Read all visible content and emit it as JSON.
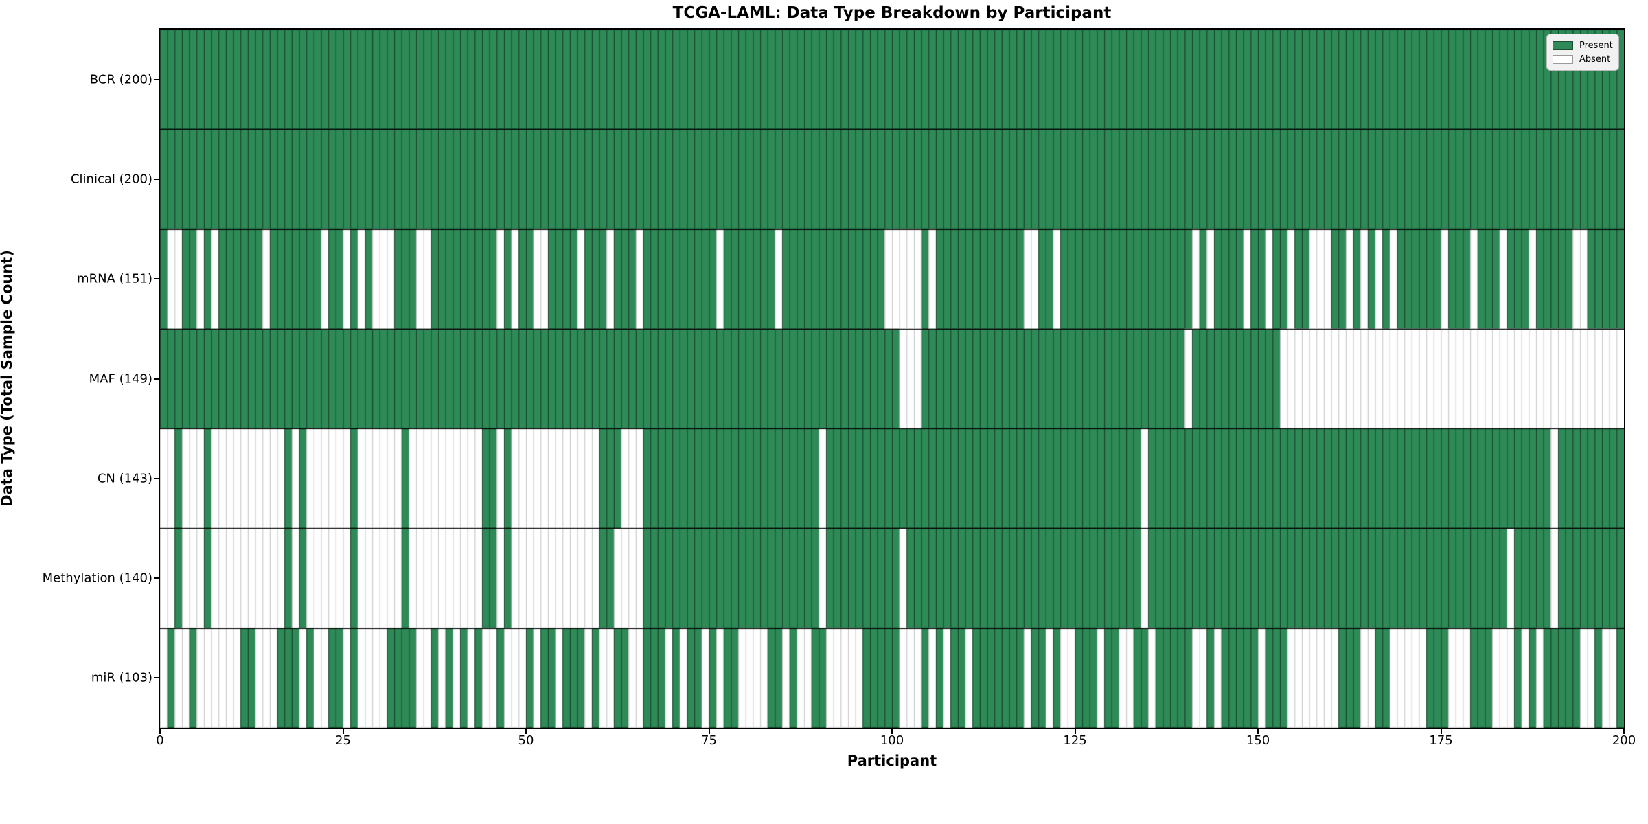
{
  "chart_data": {
    "type": "heatmap",
    "title": "TCGA-LAML: Data Type Breakdown by Participant",
    "xlabel": "Participant",
    "ylabel": "Data Type (Total Sample Count)",
    "n_participants": 200,
    "x_range": [
      0,
      200
    ],
    "xticks": [
      0,
      25,
      50,
      75,
      100,
      125,
      150,
      175,
      200
    ],
    "grid": "per-cell outlines, black row dividers",
    "legend": {
      "position": "upper right",
      "present_label": "Present",
      "absent_label": "Absent"
    },
    "colors": {
      "present": "#2e8b57",
      "absent": "#ffffff",
      "cell_edge_on_green": "rgba(0,0,0,0.55)",
      "cell_edge_on_white": "#c6c6c6",
      "row_divider": "#000000",
      "legend_background": "#f0f1f0"
    },
    "rows": [
      {
        "label": "BCR",
        "count": 200,
        "tick_label": "BCR (200)",
        "absent": []
      },
      {
        "label": "Clinical",
        "count": 200,
        "tick_label": "Clinical (200)",
        "absent": []
      },
      {
        "label": "mRNA",
        "count": 151,
        "tick_label": "mRNA (151)",
        "absent": [
          1,
          2,
          5,
          7,
          14,
          22,
          25,
          27,
          29,
          30,
          31,
          35,
          36,
          46,
          48,
          51,
          52,
          57,
          61,
          65,
          76,
          84,
          99,
          100,
          101,
          102,
          103,
          105,
          118,
          119,
          122,
          141,
          143,
          148,
          151,
          154,
          157,
          158,
          159,
          162,
          164,
          166,
          168,
          175,
          179,
          183,
          187,
          193,
          194
        ]
      },
      {
        "label": "MAF",
        "count": 149,
        "tick_label": "MAF (149)",
        "absent": [
          101,
          102,
          103,
          140,
          153,
          154,
          155,
          156,
          157,
          158,
          159,
          160,
          161,
          162,
          163,
          164,
          165,
          166,
          167,
          168,
          169,
          170,
          171,
          172,
          173,
          174,
          175,
          176,
          177,
          178,
          179,
          180,
          181,
          182,
          183,
          184,
          185,
          186,
          187,
          188,
          189,
          190,
          191,
          192,
          193,
          194,
          195,
          196,
          197,
          198,
          199
        ]
      },
      {
        "label": "CN",
        "count": 143,
        "tick_label": "CN (143)",
        "absent": [
          0,
          1,
          3,
          4,
          5,
          7,
          8,
          9,
          10,
          11,
          12,
          13,
          14,
          15,
          16,
          18,
          20,
          21,
          22,
          23,
          24,
          25,
          27,
          28,
          29,
          30,
          31,
          32,
          34,
          35,
          36,
          37,
          38,
          39,
          40,
          41,
          42,
          43,
          46,
          48,
          49,
          50,
          51,
          52,
          53,
          54,
          55,
          56,
          57,
          58,
          59,
          63,
          64,
          65,
          90,
          134,
          190
        ]
      },
      {
        "label": "Methylation",
        "count": 140,
        "tick_label": "Methylation (140)",
        "absent": [
          0,
          1,
          3,
          4,
          5,
          7,
          8,
          9,
          10,
          11,
          12,
          13,
          14,
          15,
          16,
          18,
          20,
          21,
          22,
          23,
          24,
          25,
          27,
          28,
          29,
          30,
          31,
          32,
          34,
          35,
          36,
          37,
          38,
          39,
          40,
          41,
          42,
          43,
          46,
          48,
          49,
          50,
          51,
          52,
          53,
          54,
          55,
          56,
          57,
          58,
          59,
          62,
          63,
          64,
          65,
          90,
          101,
          134,
          184,
          190
        ]
      },
      {
        "label": "miR",
        "count": 103,
        "tick_label": "miR (103)",
        "absent": [
          0,
          2,
          3,
          5,
          6,
          7,
          8,
          9,
          10,
          13,
          14,
          15,
          19,
          21,
          22,
          25,
          27,
          28,
          29,
          30,
          35,
          36,
          38,
          40,
          42,
          44,
          45,
          47,
          48,
          49,
          51,
          54,
          58,
          60,
          61,
          64,
          65,
          69,
          71,
          74,
          76,
          79,
          80,
          81,
          82,
          85,
          87,
          88,
          91,
          92,
          93,
          94,
          95,
          101,
          102,
          103,
          105,
          107,
          110,
          118,
          121,
          123,
          124,
          128,
          131,
          132,
          135,
          141,
          142,
          144,
          150,
          154,
          155,
          156,
          157,
          158,
          159,
          160,
          164,
          165,
          168,
          169,
          170,
          171,
          172,
          176,
          177,
          178,
          182,
          183,
          184,
          186,
          188,
          194,
          195,
          197,
          198
        ]
      }
    ]
  }
}
